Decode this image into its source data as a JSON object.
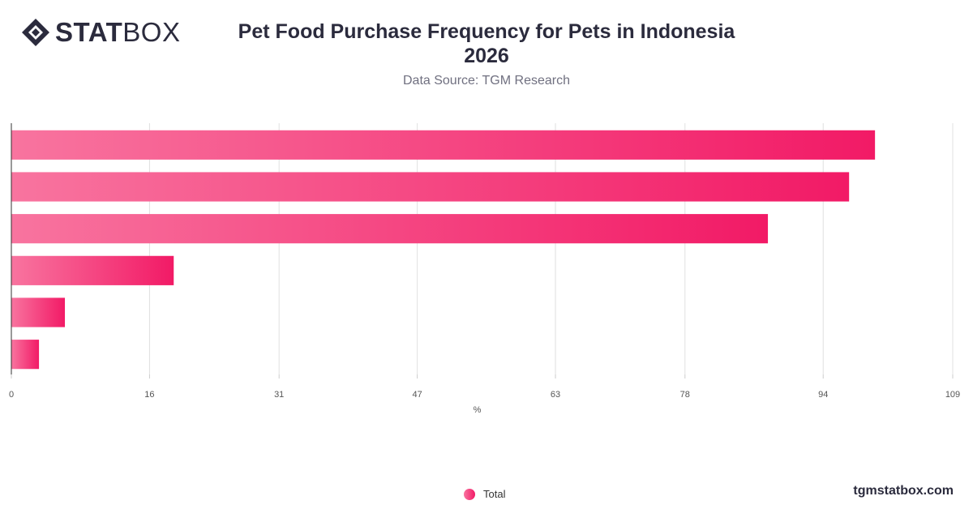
{
  "brand": {
    "logo_bold": "STAT",
    "logo_light": "BOX",
    "watermark": "tgmstatbox.com"
  },
  "chart_data": {
    "type": "bar",
    "orientation": "horizontal",
    "title": "Pet Food Purchase Frequency for Pets in Indonesia 2026",
    "subtitle": "Data Source: TGM Research",
    "xlabel": "%",
    "ylabel": "",
    "xlim": [
      0,
      109
    ],
    "x_ticks": [
      0,
      16,
      31,
      47,
      63,
      78,
      94,
      109
    ],
    "categories": [
      "",
      "",
      "",
      "",
      "",
      ""
    ],
    "series": [
      {
        "name": "Total",
        "values": [
          100,
          97,
          87.6,
          18.8,
          6.2,
          3.2
        ]
      }
    ],
    "grid": true,
    "legend_position": "bottom-center",
    "colors": {
      "bar_start": "#f8749f",
      "bar_end": "#f21a66",
      "grid": "#e0e0e0",
      "axis": "#333333"
    }
  }
}
